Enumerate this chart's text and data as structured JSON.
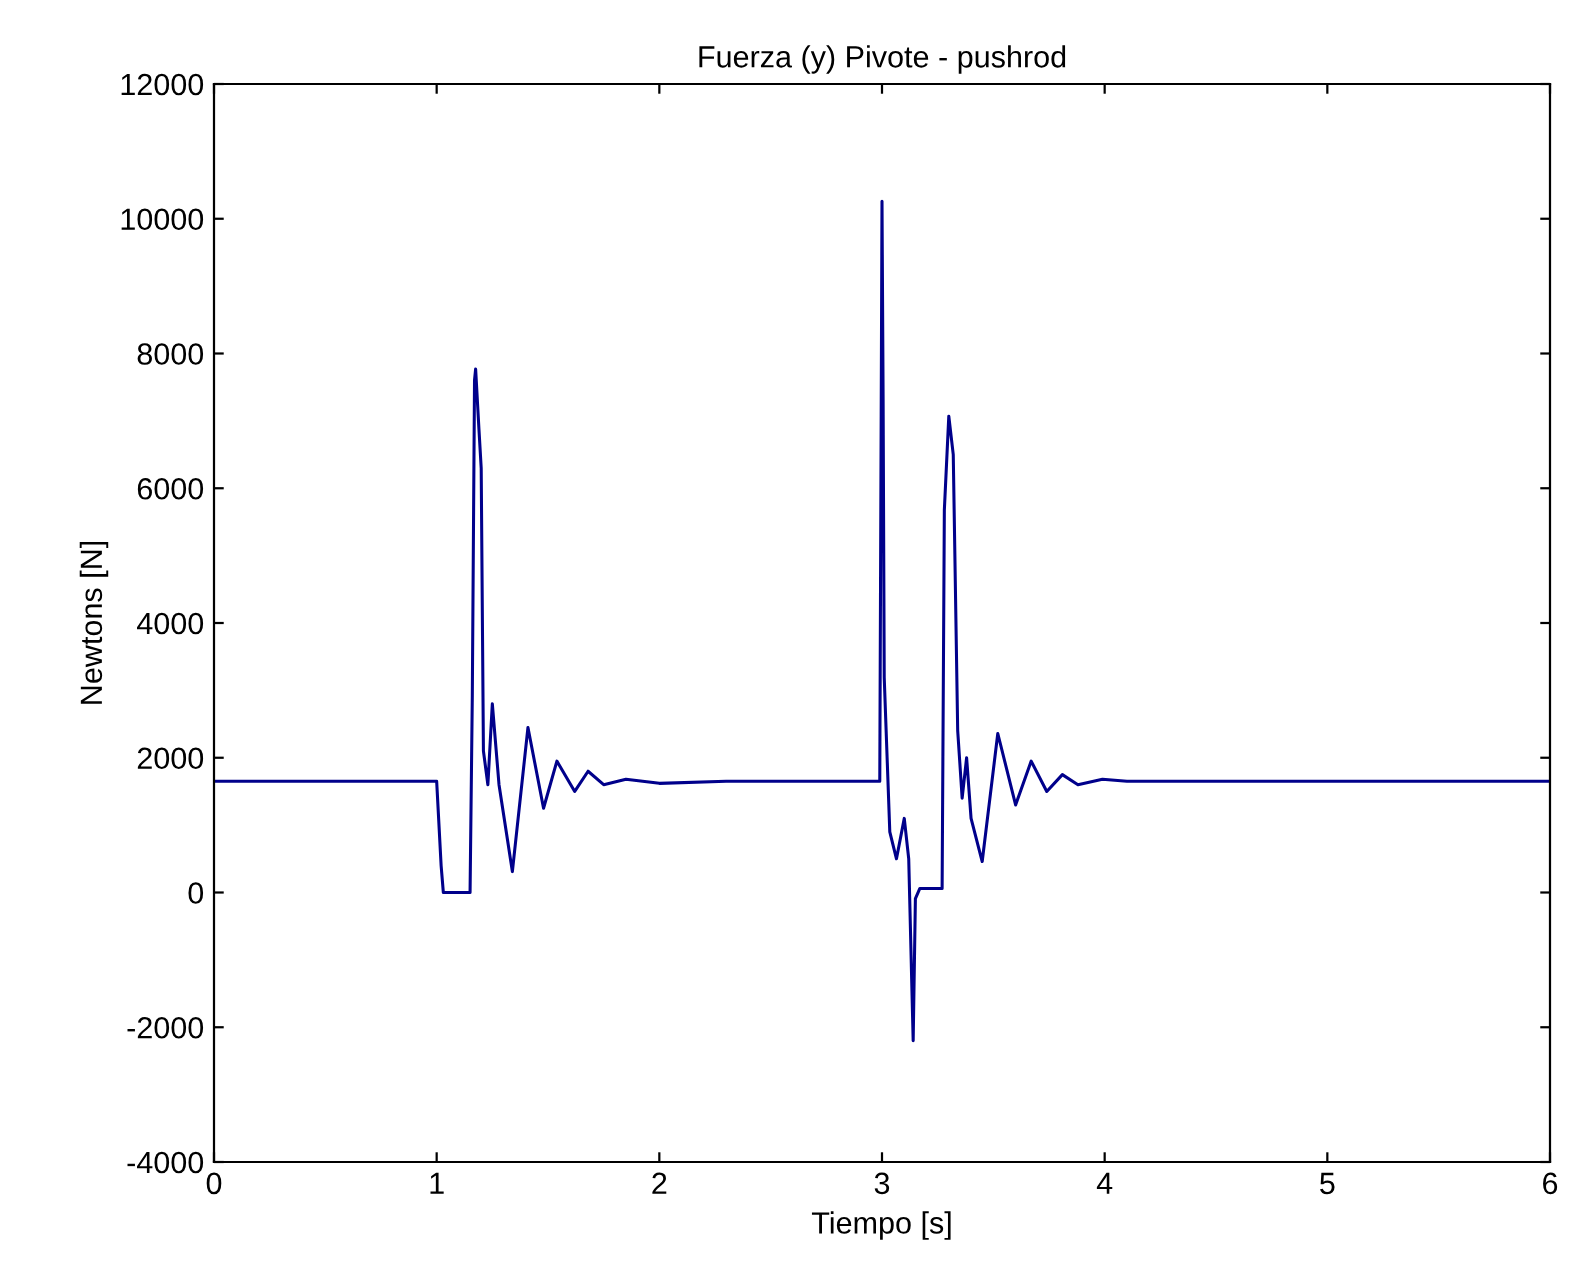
{
  "chart_data": {
    "type": "line",
    "title": "Fuerza (y) Pivote - pushrod",
    "xlabel": "Tiempo [s]",
    "ylabel": "Newtons [N]",
    "series": [
      {
        "color": "#00008b",
        "x": [
          0,
          1.0,
          1.02,
          1.03,
          1.15,
          1.16,
          1.17,
          1.175,
          1.19,
          1.2,
          1.21,
          1.23,
          1.25,
          1.28,
          1.34,
          1.41,
          1.48,
          1.54,
          1.62,
          1.68,
          1.75,
          1.85,
          2.0,
          2.3,
          2.99,
          3.0,
          3.005,
          3.01,
          3.035,
          3.065,
          3.1,
          3.12,
          3.14,
          3.15,
          3.17,
          3.27,
          3.28,
          3.3,
          3.32,
          3.34,
          3.36,
          3.38,
          3.4,
          3.45,
          3.52,
          3.6,
          3.67,
          3.74,
          3.81,
          3.88,
          3.99,
          4.1,
          6
        ],
        "values": [
          1650,
          1650,
          400,
          0,
          0,
          2900,
          7600,
          7770,
          6870,
          6300,
          2100,
          1600,
          2800,
          1600,
          310,
          2450,
          1250,
          1950,
          1500,
          1800,
          1600,
          1680,
          1620,
          1650,
          1650,
          10260,
          7320,
          3190,
          900,
          500,
          1100,
          500,
          -2200,
          -90,
          60,
          60,
          5680,
          7070,
          6500,
          2400,
          1400,
          2000,
          1100,
          460,
          2360,
          1300,
          1950,
          1500,
          1750,
          1600,
          1680,
          1650,
          1650
        ]
      }
    ],
    "xlim": [
      0,
      6
    ],
    "xticks": [
      0,
      1,
      2,
      3,
      4,
      5,
      6
    ],
    "ylim": [
      -4000,
      12000
    ],
    "yticks": [
      -4000,
      -2000,
      0,
      2000,
      4000,
      6000,
      8000,
      10000,
      12000
    ],
    "grid": false
  }
}
